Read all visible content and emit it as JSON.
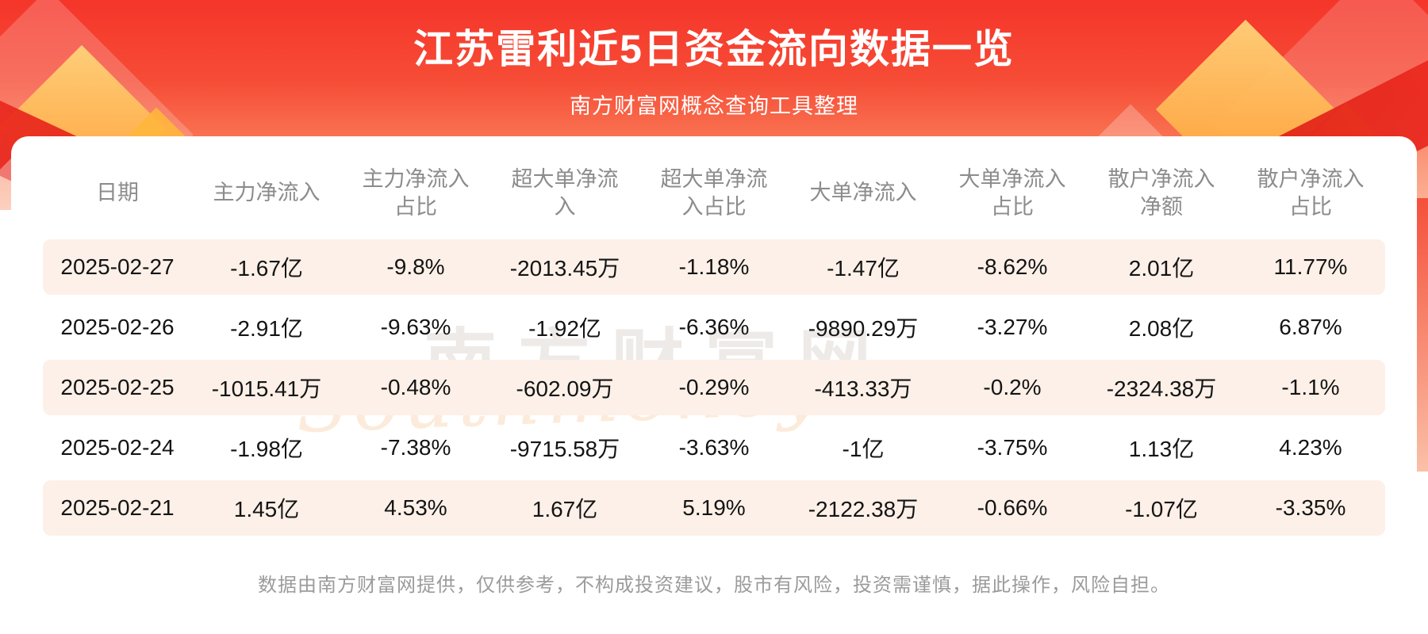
{
  "header": {
    "title": "江苏雷利近5日资金流向数据一览",
    "subtitle": "南方财富网概念查询工具整理"
  },
  "chart_data": {
    "type": "table",
    "title": "江苏雷利近5日资金流向数据一览",
    "subtitle": "南方财富网概念查询工具整理",
    "columns": [
      "日期",
      "主力净流入",
      "主力净流入占比",
      "超大单净流入",
      "超大单净流入占比",
      "大单净流入",
      "大单净流入占比",
      "散户净流入净额",
      "散户净流入占比"
    ],
    "rows": [
      [
        "2025-02-27",
        "-1.67亿",
        "-9.8%",
        "-2013.45万",
        "-1.18%",
        "-1.47亿",
        "-8.62%",
        "2.01亿",
        "11.77%"
      ],
      [
        "2025-02-26",
        "-2.91亿",
        "-9.63%",
        "-1.92亿",
        "-6.36%",
        "-9890.29万",
        "-3.27%",
        "2.08亿",
        "6.87%"
      ],
      [
        "2025-02-25",
        "-1015.41万",
        "-0.48%",
        "-602.09万",
        "-0.29%",
        "-413.33万",
        "-0.2%",
        "-2324.38万",
        "-1.1%"
      ],
      [
        "2025-02-24",
        "-1.98亿",
        "-7.38%",
        "-9715.58万",
        "-3.63%",
        "-1亿",
        "-3.75%",
        "1.13亿",
        "4.23%"
      ],
      [
        "2025-02-21",
        "1.45亿",
        "4.53%",
        "1.67亿",
        "5.19%",
        "-2122.38万",
        "-0.66%",
        "-1.07亿",
        "-3.35%"
      ]
    ]
  },
  "watermark": {
    "cn": "南方财富网",
    "en": "Southmoney.com"
  },
  "footer": {
    "disclaimer": "数据由南方财富网提供，仅供参考，不构成投资建议，股市有风险，投资需谨慎，据此操作，风险自担。"
  },
  "colors": {
    "banner_red_top": "#f5352a",
    "banner_red_bottom": "#fba684",
    "gold_decor": "#ffb63c",
    "ribbon_red": "#e32117",
    "row_alt_bg": "#fcf0e8",
    "header_text": "#8c8c8c",
    "body_text": "#141414",
    "footer_text": "#9b9b9b",
    "title_text": "#ffffff"
  }
}
